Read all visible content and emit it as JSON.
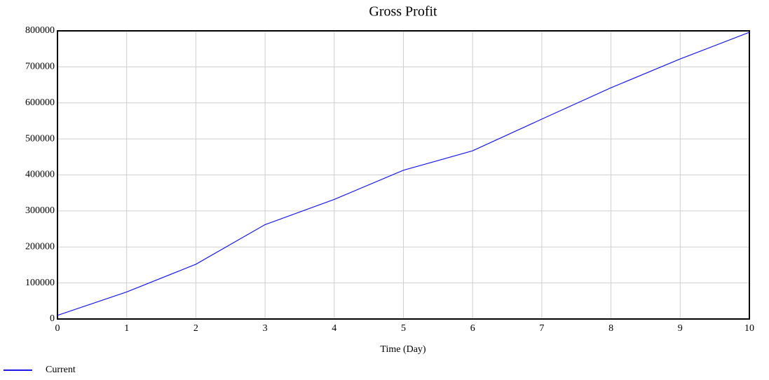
{
  "chart_data": {
    "type": "line",
    "title": "Gross Profit",
    "x_label": "Time (Day)",
    "x": [
      0,
      1,
      2,
      3,
      4,
      5,
      6,
      7,
      8,
      9,
      10
    ],
    "series": [
      {
        "name": "Current",
        "color": "#1a1ae6",
        "values": [
          10000,
          75000,
          152000,
          262000,
          332000,
          413000,
          467000,
          555000,
          642000,
          722000,
          796000
        ]
      }
    ],
    "xlim": [
      0,
      10
    ],
    "xticks": [
      0,
      1,
      2,
      3,
      4,
      5,
      6,
      7,
      8,
      9,
      10
    ],
    "ylim": [
      0,
      800000
    ],
    "yticks": [
      0,
      100000,
      200000,
      300000,
      400000,
      500000,
      600000,
      700000,
      800000
    ],
    "grid": true,
    "legend": "bottom-left"
  }
}
